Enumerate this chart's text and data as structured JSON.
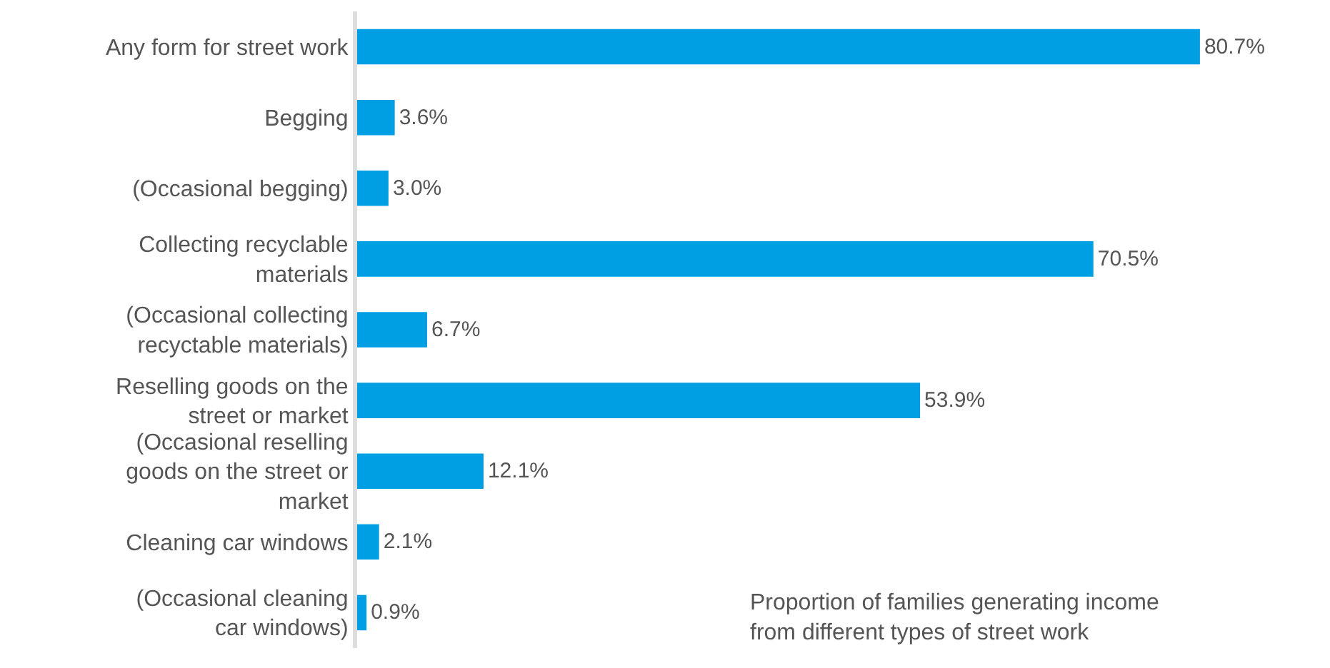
{
  "chart_data": {
    "type": "bar",
    "orientation": "horizontal",
    "categories": [
      "Any form for street work",
      "Begging",
      "(Occasional begging)",
      "Collecting recyclable\nmaterials",
      "(Occasional collecting\nrecyctable materials)",
      "Reselling goods on the\nstreet or market",
      "(Occasional reselling\ngoods on the street or\nmarket",
      "Cleaning car windows",
      "(Occasional cleaning\ncar windows)"
    ],
    "values": [
      80.7,
      3.6,
      3.0,
      70.5,
      6.7,
      53.9,
      12.1,
      2.1,
      0.9
    ],
    "value_labels": [
      "80.7%",
      "3.6%",
      "3.0%",
      "70.5%",
      "6.7%",
      "53.9%",
      "12.1%",
      "2.1%",
      "0.9%"
    ],
    "color": "#009fe3",
    "annotations": [
      "Proportion of families generating income\nfrom different types of street work"
    ]
  }
}
